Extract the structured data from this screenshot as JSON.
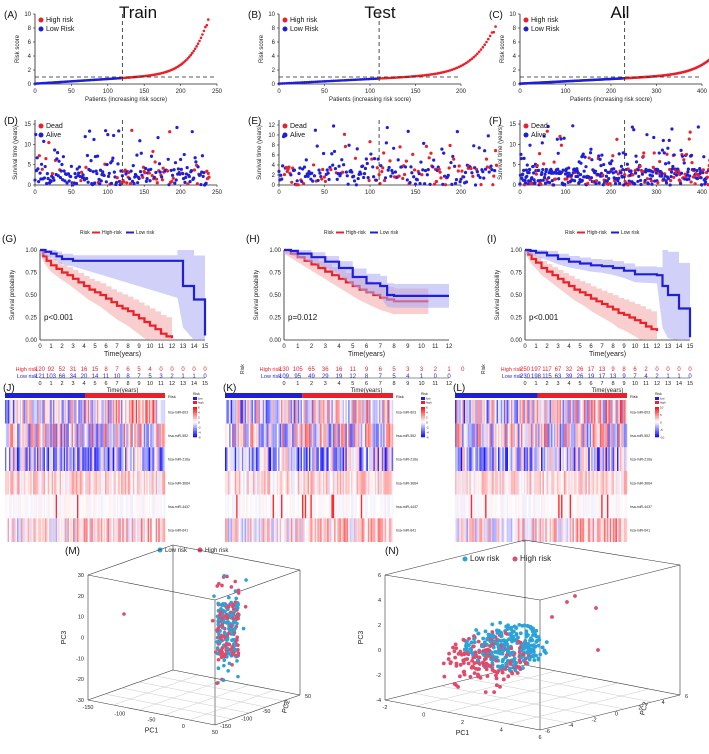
{
  "colors": {
    "high": "#e8212b",
    "low": "#1f1fd6",
    "high_band": "#f3a6a6",
    "low_band": "#a9a9f2",
    "pca_low": "#2aa3d8",
    "pca_high": "#e24a6a"
  },
  "column_titles": [
    "Train",
    "Test",
    "All"
  ],
  "chart_data": [
    {
      "id": "A",
      "type": "scatter",
      "panel": "(A)",
      "ylabel": "Risk score",
      "xlabel": "Patients (increasing risk socre)",
      "legend": [
        "High risk",
        "Low Risk"
      ],
      "n": 240,
      "cutoff_index": 120,
      "threshold": 1,
      "xticks": [
        0,
        50,
        100,
        150,
        200,
        250
      ],
      "yticks": [
        0,
        2,
        4,
        6,
        8,
        10
      ],
      "ylim": [
        0,
        10
      ],
      "max_score": 10
    },
    {
      "id": "B",
      "type": "scatter",
      "panel": "(B)",
      "ylabel": "Risk score",
      "xlabel": "Patients (increasing risk socre)",
      "legend": [
        "High risk",
        "Low Risk"
      ],
      "n": 240,
      "cutoff_index": 110,
      "threshold": 1,
      "xticks": [
        0,
        50,
        100,
        150,
        200
      ],
      "yticks": [
        0,
        2,
        4,
        6,
        8,
        10
      ],
      "ylim": [
        0,
        10
      ],
      "max_score": 9
    },
    {
      "id": "C",
      "type": "scatter",
      "panel": "(C)",
      "ylabel": "Risk score",
      "xlabel": "Patients (increasing risk socre)",
      "legend": [
        "High risk",
        "Low Risk"
      ],
      "n": 480,
      "cutoff_index": 230,
      "threshold": 1,
      "xticks": [
        0,
        100,
        200,
        300,
        400
      ],
      "yticks": [
        0,
        2,
        4,
        6,
        8,
        10
      ],
      "ylim": [
        0,
        10
      ],
      "max_score": 10
    },
    {
      "id": "D",
      "type": "scatter",
      "panel": "(D)",
      "ylabel": "Survival time (years)",
      "legend": [
        "Dead",
        "Alive"
      ],
      "n": 240,
      "cutoff_index": 120,
      "xticks": [
        0,
        50,
        100,
        150,
        200,
        250
      ],
      "yticks": [
        0,
        5,
        10,
        15
      ],
      "ylim": [
        0,
        16
      ]
    },
    {
      "id": "E",
      "type": "scatter",
      "panel": "(E)",
      "ylabel": "Survival time (years)",
      "legend": [
        "Dead",
        "Alive"
      ],
      "n": 240,
      "cutoff_index": 110,
      "xticks": [
        0,
        50,
        100,
        150,
        200
      ],
      "yticks": [
        0,
        2,
        4,
        6,
        8,
        10,
        12
      ],
      "ylim": [
        0,
        13
      ]
    },
    {
      "id": "F",
      "type": "scatter",
      "panel": "(F)",
      "ylabel": "Survival time (years)",
      "legend": [
        "Dead",
        "Alive"
      ],
      "n": 480,
      "cutoff_index": 230,
      "xticks": [
        0,
        100,
        200,
        300,
        400
      ],
      "yticks": [
        0,
        5,
        10,
        15
      ],
      "ylim": [
        0,
        16
      ]
    },
    {
      "id": "G",
      "type": "line",
      "panel": "(G)",
      "ylabel": "Survival probability",
      "xlabel": "Time(years)",
      "legend_title": "Risk",
      "legend": [
        "High-risk",
        "Low risk"
      ],
      "pvalue": "p<0.001",
      "xmax": 15,
      "xticks": [
        0,
        1,
        2,
        3,
        4,
        5,
        6,
        7,
        8,
        9,
        10,
        11,
        12,
        13,
        14,
        15
      ],
      "yticks": [
        "0.00",
        "0.25",
        "0.50",
        "0.75",
        "1.00"
      ],
      "series": [
        {
          "name": "High-risk",
          "x": [
            0,
            0.3,
            0.6,
            1,
            1.5,
            2,
            2.5,
            3,
            3.5,
            4,
            4.5,
            5,
            5.5,
            6,
            6.5,
            7,
            7.5,
            8,
            8.5,
            9,
            9.5,
            10,
            10.5,
            11,
            11.5,
            12
          ],
          "y": [
            1,
            0.93,
            0.88,
            0.83,
            0.79,
            0.75,
            0.72,
            0.68,
            0.64,
            0.6,
            0.56,
            0.53,
            0.5,
            0.46,
            0.42,
            0.38,
            0.35,
            0.32,
            0.28,
            0.24,
            0.2,
            0.16,
            0.12,
            0.07,
            0.04,
            0.02
          ]
        },
        {
          "name": "Low risk",
          "x": [
            0,
            0.5,
            1,
            1.5,
            2,
            3,
            12.5,
            13,
            14,
            15
          ],
          "y": [
            1,
            0.98,
            0.96,
            0.93,
            0.9,
            0.88,
            0.88,
            0.6,
            0.45,
            0.05
          ]
        }
      ],
      "risk_table": {
        "label": "Risk",
        "rows": [
          {
            "name": "High risk",
            "values": [
              "120",
              "92",
              "52",
              "31",
              "16",
              "15",
              "8",
              "7",
              "6",
              "5",
              "4",
              "0",
              "0",
              "0",
              "0",
              "0"
            ]
          },
          {
            "name": "Low risk",
            "values": [
              "121",
              "103",
              "66",
              "34",
              "20",
              "14",
              "11",
              "10",
              "8",
              "7",
              "5",
              "3",
              "2",
              "1",
              "1",
              "0"
            ]
          }
        ]
      }
    },
    {
      "id": "H",
      "type": "line",
      "panel": "(H)",
      "ylabel": "Survival probability",
      "xlabel": "Time(years)",
      "legend_title": "Risk",
      "legend": [
        "High-risk",
        "Low risk"
      ],
      "pvalue": "p=0.012",
      "xmax": 12,
      "xticks": [
        0,
        1,
        2,
        3,
        4,
        5,
        6,
        7,
        8,
        9,
        10,
        11,
        12
      ],
      "yticks": [
        "0.00",
        "0.25",
        "0.50",
        "0.75",
        "1.00"
      ],
      "series": [
        {
          "name": "High-risk",
          "x": [
            0,
            0.5,
            1,
            1.5,
            2,
            2.5,
            3,
            3.5,
            4,
            4.5,
            5,
            5.5,
            6,
            6.5,
            7,
            7.5,
            8,
            10.5
          ],
          "y": [
            1,
            0.96,
            0.92,
            0.88,
            0.84,
            0.8,
            0.76,
            0.72,
            0.68,
            0.64,
            0.6,
            0.56,
            0.53,
            0.5,
            0.47,
            0.45,
            0.43,
            0.43
          ]
        },
        {
          "name": "Low risk",
          "x": [
            0,
            0.5,
            1,
            2,
            3,
            4,
            5,
            6,
            7,
            7.5,
            8,
            12
          ],
          "y": [
            1,
            0.99,
            0.96,
            0.92,
            0.87,
            0.8,
            0.7,
            0.63,
            0.6,
            0.5,
            0.49,
            0.49
          ]
        }
      ],
      "risk_table": {
        "label": "Risk",
        "rows": [
          {
            "name": "High risk",
            "values": [
              "130",
              "105",
              "65",
              "36",
              "16",
              "11",
              "9",
              "6",
              "5",
              "3",
              "3",
              "2",
              "1",
              "0"
            ]
          },
          {
            "name": "Low risk",
            "values": [
              "109",
              "95",
              "49",
              "29",
              "19",
              "12",
              "8",
              "7",
              "5",
              "4",
              "1",
              "0",
              "0"
            ]
          }
        ]
      }
    },
    {
      "id": "I",
      "type": "line",
      "panel": "(I)",
      "ylabel": "Survival probability",
      "xlabel": "Time(years)",
      "legend_title": "Risk",
      "legend": [
        "High-risk",
        "Low risk"
      ],
      "pvalue": "p<0.001",
      "xmax": 15,
      "xticks": [
        0,
        1,
        2,
        3,
        4,
        5,
        6,
        7,
        8,
        9,
        10,
        11,
        12,
        13,
        14,
        15
      ],
      "yticks": [
        "0.00",
        "0.25",
        "0.50",
        "0.75",
        "1.00"
      ],
      "series": [
        {
          "name": "High-risk",
          "x": [
            0,
            0.3,
            0.6,
            1,
            1.5,
            2,
            2.5,
            3,
            3.5,
            4,
            4.5,
            5,
            5.5,
            6,
            6.5,
            7,
            7.5,
            8,
            8.5,
            9,
            9.5,
            10,
            10.5,
            11,
            11.5,
            12
          ],
          "y": [
            1,
            0.95,
            0.9,
            0.86,
            0.8,
            0.76,
            0.72,
            0.68,
            0.64,
            0.6,
            0.56,
            0.53,
            0.5,
            0.46,
            0.43,
            0.4,
            0.37,
            0.34,
            0.3,
            0.28,
            0.25,
            0.22,
            0.19,
            0.15,
            0.12,
            0.1
          ]
        },
        {
          "name": "Low risk",
          "x": [
            0,
            0.5,
            1,
            2,
            3,
            4,
            5,
            6,
            7,
            8,
            9,
            10,
            12,
            12.5,
            13,
            14,
            15
          ],
          "y": [
            1,
            0.99,
            0.97,
            0.94,
            0.9,
            0.87,
            0.85,
            0.83,
            0.82,
            0.8,
            0.77,
            0.73,
            0.72,
            0.6,
            0.5,
            0.35,
            0.03
          ]
        }
      ],
      "risk_table": {
        "label": "Risk",
        "rows": [
          {
            "name": "High risk",
            "values": [
              "250",
              "197",
              "117",
              "67",
              "32",
              "26",
              "17",
              "13",
              "9",
              "8",
              "6",
              "2",
              "0",
              "0",
              "0",
              "0"
            ]
          },
          {
            "name": "Low risk",
            "values": [
              "230",
              "198",
              "115",
              "63",
              "39",
              "26",
              "19",
              "17",
              "13",
              "9",
              "7",
              "4",
              "2",
              "1",
              "1",
              "0"
            ]
          }
        ]
      }
    },
    {
      "id": "J",
      "type": "heatmap",
      "panel": "(J)",
      "rows": [
        "hsa-miR-603",
        "hsa-miR-552",
        "hsa-miR-216a",
        "hsa-miR-3664",
        "hsa-miR-4437",
        "hsa-miR-641"
      ],
      "annotation": "Risk",
      "legend_title": "Risk",
      "legend_levels": [
        "low",
        "high"
      ],
      "color_scale": [
        -6,
        -4,
        -2,
        0,
        2,
        4,
        6
      ],
      "cutoff_fraction": 0.5
    },
    {
      "id": "K",
      "type": "heatmap",
      "panel": "(K)",
      "rows": [
        "hsa-miR-603",
        "hsa-miR-552",
        "hsa-miR-216a",
        "hsa-miR-3664",
        "hsa-miR-4437",
        "hsa-miR-641"
      ],
      "annotation": "Risk",
      "legend_title": "Risk",
      "legend_levels": [
        "low",
        "high"
      ],
      "color_scale": [
        -6,
        -4,
        -2,
        0,
        2,
        4,
        6
      ],
      "cutoff_fraction": 0.46
    },
    {
      "id": "L",
      "type": "heatmap",
      "panel": "(L)",
      "rows": [
        "hsa-miR-603",
        "hsa-miR-552",
        "hsa-miR-216a",
        "hsa-miR-3664",
        "hsa-miR-4437",
        "hsa-miR-641"
      ],
      "annotation": "Risk",
      "legend_title": "Risk",
      "legend_levels": [
        "low",
        "high"
      ],
      "color_scale": [
        -10,
        -5,
        0,
        5,
        10
      ],
      "cutoff_fraction": 0.48
    },
    {
      "id": "M",
      "type": "scatter3d",
      "panel": "(M)",
      "legend": [
        "Low risk",
        "High risk"
      ],
      "xlabel": "PC1",
      "ylabel": "PC2",
      "zlabel": "PC3",
      "xticks": [
        "-150",
        "-100",
        "-50",
        "0",
        "50"
      ],
      "yticks": [
        "-150",
        "-100",
        "-50",
        "0",
        "50"
      ],
      "zticks": [
        "-30",
        "-20",
        "-10",
        "0",
        "10",
        "20",
        "30"
      ]
    },
    {
      "id": "N",
      "type": "scatter3d",
      "panel": "(N)",
      "legend": [
        "Low risk",
        "High risk"
      ],
      "xlabel": "PC1",
      "ylabel": "PC2",
      "zlabel": "PC3",
      "xticks": [
        "-2",
        "0",
        "2",
        "4",
        "6"
      ],
      "yticks": [
        "-6",
        "-4",
        "-2",
        "0",
        "2",
        "4",
        "6"
      ],
      "zticks": [
        "-4",
        "-2",
        "0",
        "2",
        "4",
        "6"
      ]
    }
  ]
}
